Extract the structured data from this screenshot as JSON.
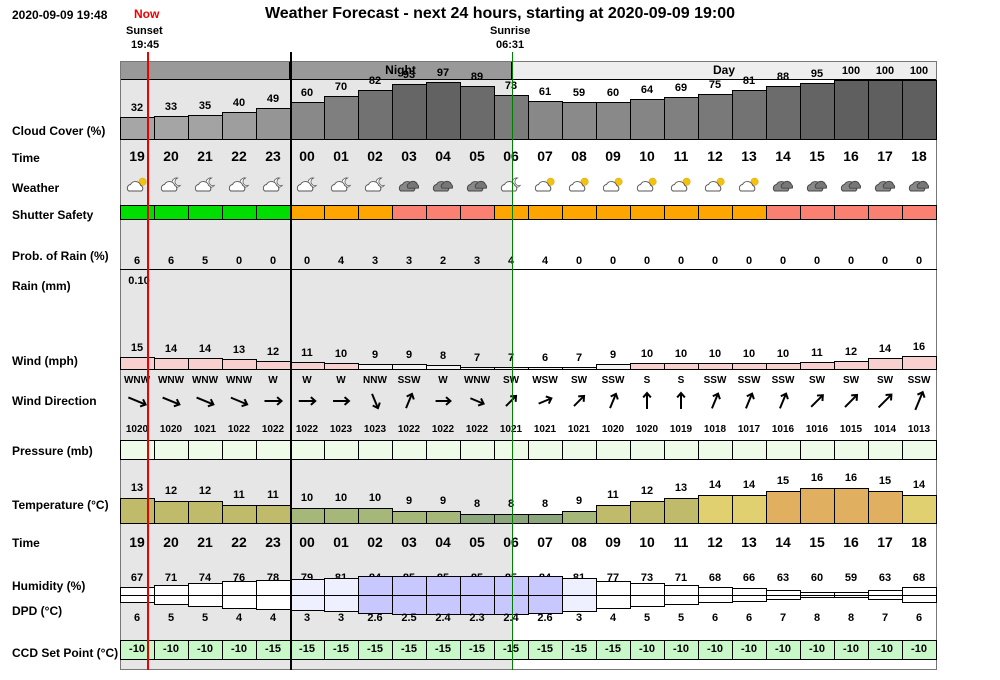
{
  "header": {
    "timestamp": "2020-09-09 19:48",
    "now_label": "Now",
    "title": "Weather Forecast - next 24 hours, starting at 2020-09-09 19:00",
    "sunset_label": "Sunset",
    "sunset_time": "19:45",
    "sunrise_label": "Sunrise",
    "sunrise_time": "06:31",
    "night_label": "Night",
    "day_label": "Day"
  },
  "row_labels": {
    "cloud_cover": "Cloud Cover (%)",
    "time": "Time",
    "weather": "Weather",
    "shutter": "Shutter Safety",
    "rain_prob": "Prob. of Rain (%)",
    "rain": "Rain (mm)",
    "wind": "Wind (mph)",
    "wind_dir": "Wind Direction",
    "pressure": "Pressure (mb)",
    "temperature": "Temperature (°C)",
    "time2": "Time",
    "humidity": "Humidity (%)",
    "dpd": "DPD (°C)",
    "ccd": "CCD Set Point (°C)"
  },
  "colors": {
    "shutter_safe": "#00dd00",
    "shutter_caution": "#ffa500",
    "shutter_unsafe": "#fa8072",
    "night_shade": "#e6e6e6",
    "now_line": "#ee0000",
    "sunrise_line": "#008000",
    "ccd_bg": "#c8f7c8",
    "pressure_bg": "#eefbe8"
  },
  "chart_data": {
    "type": "table",
    "hours": [
      "19",
      "20",
      "21",
      "22",
      "23",
      "00",
      "01",
      "02",
      "03",
      "04",
      "05",
      "06",
      "07",
      "08",
      "09",
      "10",
      "11",
      "12",
      "13",
      "14",
      "15",
      "16",
      "17",
      "18"
    ],
    "cloud_cover": [
      32,
      33,
      35,
      40,
      49,
      60,
      70,
      82,
      93,
      97,
      89,
      73,
      61,
      59,
      60,
      64,
      69,
      75,
      81,
      88,
      95,
      100,
      100,
      100
    ],
    "weather_icons": [
      "partly-cloudy-day-icon",
      "partly-cloudy-night-icon",
      "partly-cloudy-night-icon",
      "partly-cloudy-night-icon",
      "partly-cloudy-night-icon",
      "partly-cloudy-night-icon",
      "partly-cloudy-night-icon",
      "partly-cloudy-night-icon",
      "cloudy-icon",
      "cloudy-icon",
      "cloudy-icon",
      "partly-cloudy-night-icon",
      "partly-cloudy-day-icon",
      "partly-cloudy-day-icon",
      "partly-cloudy-day-icon",
      "partly-cloudy-day-icon",
      "partly-cloudy-day-icon",
      "partly-cloudy-day-icon",
      "partly-cloudy-day-icon",
      "cloudy-icon",
      "cloudy-icon",
      "cloudy-icon",
      "cloudy-icon",
      "cloudy-icon"
    ],
    "shutter_safety": [
      "safe",
      "safe",
      "safe",
      "safe",
      "safe",
      "caution",
      "caution",
      "caution",
      "unsafe",
      "unsafe",
      "unsafe",
      "caution",
      "caution",
      "caution",
      "caution",
      "caution",
      "caution",
      "caution",
      "caution",
      "unsafe",
      "unsafe",
      "unsafe",
      "unsafe",
      "unsafe"
    ],
    "rain_probability": [
      6,
      6,
      5,
      0,
      0,
      0,
      4,
      3,
      3,
      2,
      3,
      4,
      4,
      0,
      0,
      0,
      0,
      0,
      0,
      0,
      0,
      0,
      0,
      0
    ],
    "rain_mm": [
      0.1,
      0,
      0,
      0,
      0,
      0,
      0,
      0,
      0,
      0,
      0,
      0,
      0,
      0,
      0,
      0,
      0,
      0,
      0,
      0,
      0,
      0,
      0,
      0
    ],
    "rain_labels": [
      "0.10",
      "",
      "",
      "",
      "",
      "",
      "",
      "",
      "",
      "",
      "",
      "",
      "",
      "",
      "",
      "",
      "",
      "",
      "",
      "",
      "",
      "",
      "",
      ""
    ],
    "wind_mph": [
      15,
      14,
      14,
      13,
      12,
      11,
      10,
      9,
      9,
      8,
      7,
      7,
      6,
      7,
      9,
      10,
      10,
      10,
      10,
      10,
      11,
      12,
      14,
      16
    ],
    "wind_direction": [
      "WNW",
      "WNW",
      "WNW",
      "WNW",
      "W",
      "W",
      "W",
      "NNW",
      "SSW",
      "W",
      "WNW",
      "SW",
      "WSW",
      "SW",
      "SSW",
      "S",
      "S",
      "SSW",
      "SSW",
      "SSW",
      "SW",
      "SW",
      "SW",
      "SSW"
    ],
    "pressure_mb": [
      1020,
      1020,
      1021,
      1022,
      1022,
      1022,
      1023,
      1023,
      1022,
      1022,
      1022,
      1021,
      1021,
      1021,
      1020,
      1020,
      1019,
      1018,
      1017,
      1016,
      1016,
      1015,
      1014,
      1013
    ],
    "temperature_c": [
      13,
      12,
      12,
      11,
      11,
      10,
      10,
      10,
      9,
      9,
      8,
      8,
      8,
      9,
      11,
      12,
      13,
      14,
      14,
      15,
      16,
      16,
      15,
      14
    ],
    "humidity_pct": [
      67,
      71,
      74,
      76,
      78,
      79,
      81,
      84,
      85,
      85,
      85,
      85,
      84,
      81,
      77,
      73,
      71,
      68,
      66,
      63,
      60,
      59,
      63,
      68
    ],
    "dpd_c": [
      "6",
      "5",
      "5",
      "4",
      "4",
      "3",
      "3",
      "2.6",
      "2.5",
      "2.4",
      "2.3",
      "2.4",
      "2.6",
      "3",
      "4",
      "5",
      "5",
      "6",
      "6",
      "7",
      "8",
      "8",
      "7",
      "6"
    ],
    "ccd_set_point": [
      -10,
      -10,
      -10,
      -10,
      -15,
      -15,
      -15,
      -15,
      -15,
      -15,
      -15,
      -15,
      -15,
      -15,
      -15,
      -10,
      -10,
      -10,
      -10,
      -10,
      -10,
      -10,
      -10,
      -10
    ]
  }
}
